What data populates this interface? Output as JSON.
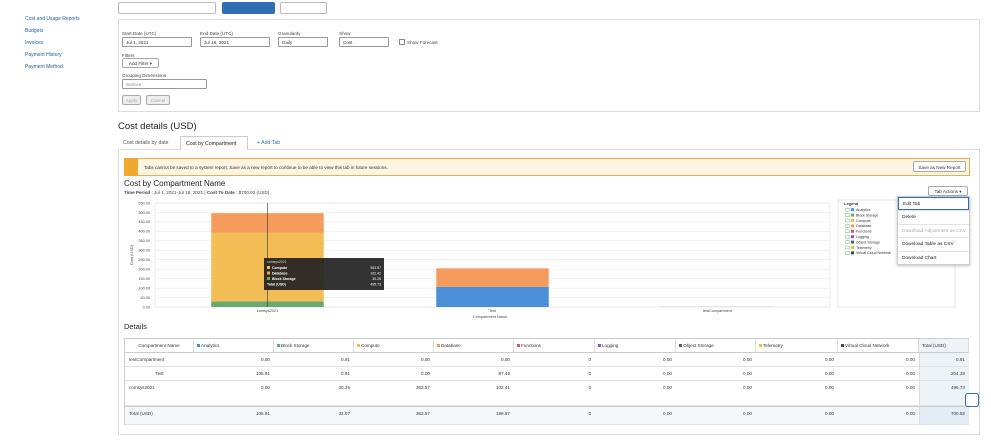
{
  "sidebar": {
    "links": [
      "Cost and Usage Reports",
      "Budgets",
      "Invoices",
      "Payment History",
      "Payment Method"
    ]
  },
  "filters": {
    "start_label": "Start Date (UTC)",
    "start_value": "Jul 1, 2021",
    "end_label": "End Date (UTC)",
    "end_value": "Jul 16, 2021",
    "granularity_label": "Granularity",
    "granularity_value": "Daily",
    "show_label": "Show",
    "show_value": "Cost",
    "forecast_label": "Show Forecast",
    "filters_label": "Filters",
    "add_filter": "Add Filter ▾",
    "grouping_label": "Grouping Dimensions",
    "grouping_value": "Service",
    "apply": "Apply",
    "cancel": "Cancel"
  },
  "section_title": "Cost details (USD)",
  "tabs": [
    "Cost details by date",
    "Cost by Compartment",
    "+ Add Tab"
  ],
  "warning": {
    "text": "Tabs cannot be saved to a system report. Save as a new report to continue to be able to view this tab in future sessions.",
    "button": "Save as New Report"
  },
  "report": {
    "title": "Cost by Compartment Name",
    "period_label": "Time Period",
    "period": ": Jul 1, 2021-Jul 16, 2021 |",
    "cost_label": "Cost To Date",
    "cost": ": $700.92 (USD)",
    "actions": "Tab Actions ▾"
  },
  "menu": [
    "Edit Tab",
    "Delete",
    "Download Adjustment as CSV",
    "Download Table as CSV",
    "Download Chart"
  ],
  "chart_data": {
    "type": "bar",
    "stacked": true,
    "ylabel": "Cost (USD)",
    "xlabel": "Compartment Name",
    "legend_title": "Legend",
    "grid": true,
    "categories": [
      "comsys2021",
      "Test",
      "testCompartment"
    ],
    "series": [
      {
        "name": "Analytics",
        "color": "#4a90d9",
        "values": [
          0,
          105.91,
          0
        ]
      },
      {
        "name": "Block Storage",
        "color": "#6aa86f",
        "values": [
          30.25,
          0.91,
          0.91
        ]
      },
      {
        "name": "Compute",
        "color": "#f3bd55",
        "values": [
          363.57,
          0,
          0
        ]
      },
      {
        "name": "Database",
        "color": "#f59b5b",
        "values": [
          102.41,
          97.46,
          0
        ]
      },
      {
        "name": "Functions",
        "color": "#d9577a",
        "values": [
          0,
          0,
          0
        ]
      },
      {
        "name": "Logging",
        "color": "#8e5cb5",
        "values": [
          0,
          0,
          0
        ]
      },
      {
        "name": "Object Storage",
        "color": "#555f6b",
        "values": [
          0,
          0,
          0
        ]
      },
      {
        "name": "Telemetry",
        "color": "#e6c53b",
        "values": [
          0,
          0,
          0
        ]
      },
      {
        "name": "Virtual Cloud Network",
        "color": "#2f4d66",
        "values": [
          0,
          0,
          0
        ]
      }
    ],
    "ylim": [
      0,
      550
    ],
    "yticks": [
      {
        "value": 0,
        "label": "0.00"
      },
      {
        "value": 50,
        "label": "50.00"
      },
      {
        "value": 100,
        "label": "100.00"
      },
      {
        "value": 150,
        "label": "150.00"
      },
      {
        "value": 200,
        "label": "200.00"
      },
      {
        "value": 250,
        "label": "250.00"
      },
      {
        "value": 300,
        "label": "300.00"
      },
      {
        "value": 350,
        "label": "350.00"
      },
      {
        "value": 400,
        "label": "400.00"
      },
      {
        "value": 450,
        "label": "450.00"
      },
      {
        "value": 500,
        "label": "500.00"
      },
      {
        "value": 550,
        "label": "550.00"
      }
    ],
    "tooltip": {
      "title": "comsys2021",
      "rows": [
        [
          "Compute",
          "363.57"
        ],
        [
          "Database",
          "102.41"
        ],
        [
          "Block Storage",
          "30.25"
        ],
        [
          "Total (USD)",
          "495.73"
        ]
      ]
    }
  },
  "details": {
    "title": "Details",
    "columns": [
      "Compartment Name",
      "Analytics",
      "Block Storage",
      "Compute",
      "Database",
      "Functions",
      "Logging",
      "Object Storage",
      "Telemetry",
      "Virtual Cloud Network",
      "Total (USD)"
    ],
    "rows": [
      [
        "testCompartment",
        "0.00",
        "0.91",
        "0.00",
        "0.00",
        "0",
        "0.00",
        "0.00",
        "0.00",
        "0.00",
        "0.91"
      ],
      [
        "Test",
        "105.91",
        "0.91",
        "0.00",
        "97.46",
        "0",
        "0.00",
        "0.00",
        "0.00",
        "0.00",
        "204.28"
      ],
      [
        "comsys2021",
        "0.00",
        "30.25",
        "363.57",
        "102.41",
        "0",
        "0.00",
        "0.00",
        "0.00",
        "0.00",
        "495.73"
      ],
      [
        "Total (USD)",
        "105.91",
        "32.07",
        "363.57",
        "199.87",
        "0",
        "0.00",
        "0.00",
        "0.00",
        "0.00",
        "700.92"
      ]
    ]
  }
}
